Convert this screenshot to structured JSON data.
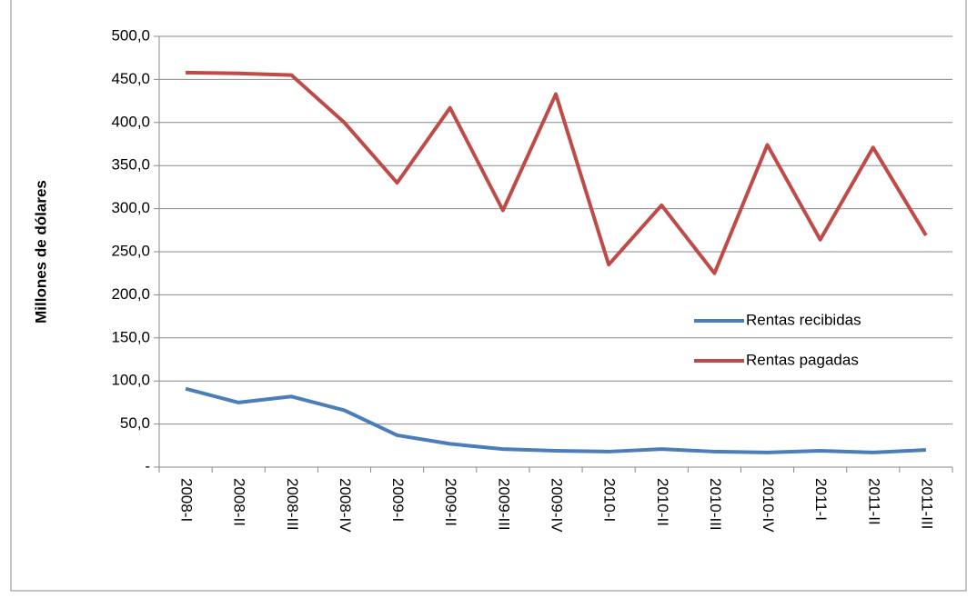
{
  "chart_data": {
    "type": "line",
    "y_label": "Millones de dólares",
    "categories": [
      "2008-I",
      "2008-II",
      "2008-III",
      "2008-IV",
      "2009-I",
      "2009-II",
      "2009-III",
      "2009-IV",
      "2010-I",
      "2010-II",
      "2010-III",
      "2010-IV",
      "2011-I",
      "2011-II",
      "2011-III"
    ],
    "series": [
      {
        "name": "Rentas recibidas",
        "color": "#4a7ebb",
        "values": [
          91,
          75,
          82,
          66,
          37,
          27,
          21,
          19,
          18,
          21,
          18,
          17,
          19,
          17,
          20
        ]
      },
      {
        "name": "Rentas pagadas",
        "color": "#be4b48",
        "values": [
          458,
          457,
          455,
          400,
          330,
          417,
          298,
          433,
          235,
          304,
          225,
          374,
          264,
          371,
          269
        ]
      }
    ],
    "ylim": [
      0,
      500
    ],
    "yticks": [
      {
        "value": 0,
        "label": "-"
      },
      {
        "value": 50,
        "label": "50,0"
      },
      {
        "value": 100,
        "label": "100,0"
      },
      {
        "value": 150,
        "label": "150,0"
      },
      {
        "value": 200,
        "label": "200,0"
      },
      {
        "value": 250,
        "label": "250,0"
      },
      {
        "value": 300,
        "label": "300,0"
      },
      {
        "value": 350,
        "label": "350,0"
      },
      {
        "value": 400,
        "label": "400,0"
      },
      {
        "value": 450,
        "label": "450,0"
      },
      {
        "value": 500,
        "label": "500,0"
      }
    ],
    "grid": true,
    "legend": "right"
  }
}
